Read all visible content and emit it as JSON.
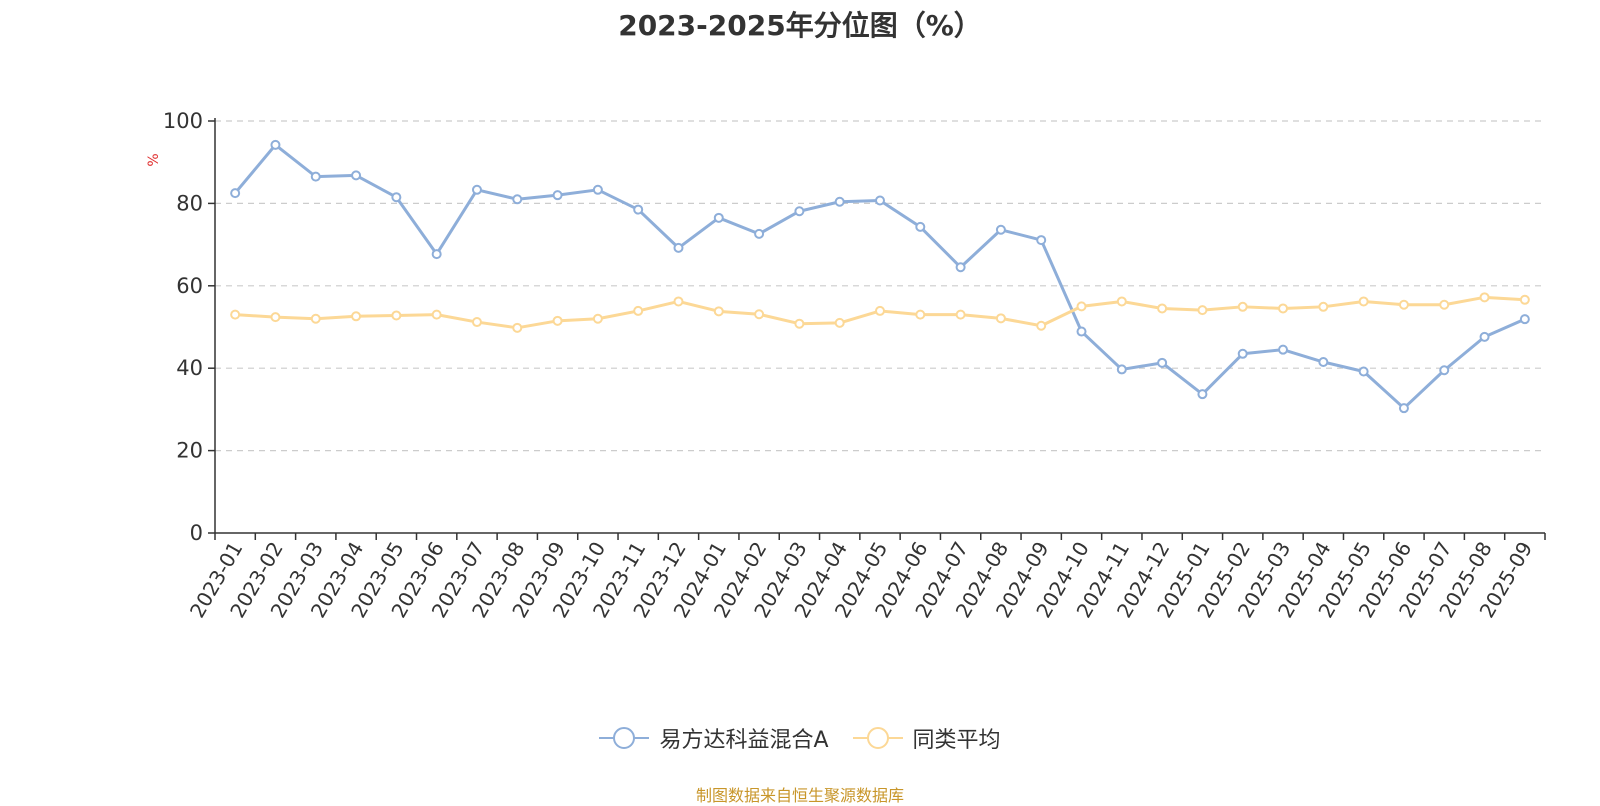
{
  "chart_data": {
    "type": "line",
    "title": "2023-2025年分位图（%）",
    "ylabel": "%",
    "xlabel": "",
    "ylim": [
      0,
      100
    ],
    "yticks": [
      0,
      20,
      40,
      60,
      80,
      100
    ],
    "grid": true,
    "legend_position": "bottom-center",
    "x": [
      "2023-01",
      "2023-02",
      "2023-03",
      "2023-04",
      "2023-05",
      "2023-06",
      "2023-07",
      "2023-08",
      "2023-09",
      "2023-10",
      "2023-11",
      "2023-12",
      "2024-01",
      "2024-02",
      "2024-03",
      "2024-04",
      "2024-05",
      "2024-06",
      "2024-07",
      "2024-08",
      "2024-09",
      "2024-10",
      "2024-11",
      "2024-12",
      "2025-01",
      "2025-02",
      "2025-03",
      "2025-04",
      "2025-05",
      "2025-06",
      "2025-07",
      "2025-08",
      "2025-09"
    ],
    "series": [
      {
        "name": "易方达科益混合A",
        "color": "#8eaed9",
        "values": [
          82.5,
          94.2,
          86.5,
          86.8,
          81.5,
          67.7,
          83.3,
          81.0,
          82.0,
          83.3,
          78.5,
          69.2,
          76.5,
          72.6,
          78.1,
          80.4,
          80.7,
          74.3,
          64.5,
          73.6,
          71.1,
          48.9,
          39.7,
          41.3,
          33.7,
          43.5,
          44.5,
          41.5,
          39.2,
          30.3,
          39.5,
          47.6,
          51.9
        ]
      },
      {
        "name": "同类平均",
        "color": "#fcd896",
        "values": [
          53.0,
          52.4,
          52.0,
          52.6,
          52.8,
          53.0,
          51.2,
          49.8,
          51.5,
          52.0,
          53.9,
          56.2,
          53.8,
          53.1,
          50.8,
          51.0,
          53.9,
          53.0,
          53.0,
          52.1,
          50.3,
          55.0,
          56.2,
          54.5,
          54.1,
          54.9,
          54.5,
          54.9,
          56.2,
          55.4,
          55.4,
          57.2,
          56.6
        ]
      }
    ]
  },
  "source_text": "制图数据来自恒生聚源数据库",
  "source_color": "#c8962a"
}
